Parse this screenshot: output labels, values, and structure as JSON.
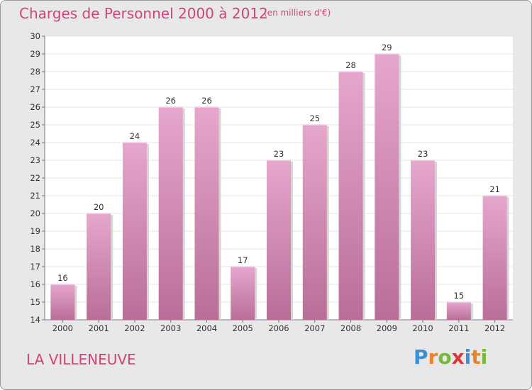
{
  "chart_data": {
    "type": "bar",
    "title": "Charges de Personnel 2000 à 2012",
    "subtitle": "(en milliers d'€)",
    "categories": [
      "2000",
      "2001",
      "2002",
      "2003",
      "2004",
      "2005",
      "2006",
      "2007",
      "2008",
      "2009",
      "2010",
      "2011",
      "2012"
    ],
    "values": [
      16,
      20,
      24,
      26,
      26,
      17,
      23,
      25,
      28,
      29,
      23,
      15,
      21
    ],
    "ylim": [
      14,
      30
    ],
    "yticks": [
      14,
      15,
      16,
      17,
      18,
      19,
      20,
      21,
      22,
      23,
      24,
      25,
      26,
      27,
      28,
      29,
      30
    ],
    "grid": true,
    "colors": {
      "bar_top": "#e6a7cd",
      "bar_bottom": "#b96e98",
      "text": "#d0437a"
    }
  },
  "footer": {
    "location": "LA VILLENEUVE"
  },
  "logo": {
    "letters": [
      "P",
      "r",
      "o",
      "x",
      "i",
      "t",
      "i"
    ],
    "colors": [
      "#3a8fd6",
      "#e8842a",
      "#78b83a",
      "#d63a3a",
      "#3a8fd6",
      "#e8842a",
      "#78b83a"
    ]
  }
}
